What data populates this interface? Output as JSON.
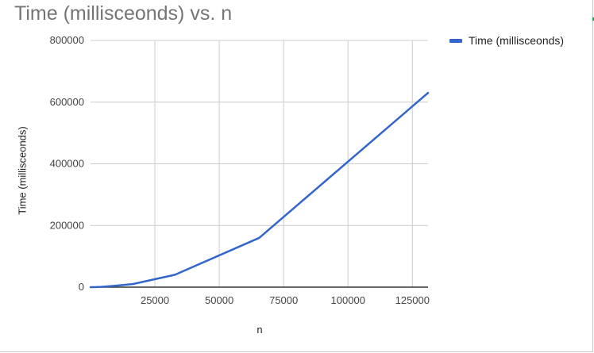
{
  "chart_data": {
    "type": "line",
    "title": "Time (millisceonds) vs. n",
    "xlabel": "n",
    "ylabel": "Time (millisceonds)",
    "xlim": [
      0,
      131072
    ],
    "ylim": [
      0,
      800000
    ],
    "xticks": [
      25000,
      50000,
      75000,
      100000,
      125000
    ],
    "yticks": [
      0,
      200000,
      400000,
      600000,
      800000
    ],
    "x_tick_labels": [
      "25000",
      "50000",
      "75000",
      "100000",
      "125000"
    ],
    "y_tick_labels": [
      "0",
      "200000",
      "400000",
      "600000",
      "800000"
    ],
    "grid": true,
    "legend_position": "top-right",
    "series": [
      {
        "name": "Time (millisceonds)",
        "color": "#3366cc",
        "x": [
          0,
          2048,
          4096,
          8192,
          16384,
          32768,
          65536,
          131072
        ],
        "y": [
          0,
          300,
          1100,
          3500,
          10000,
          40000,
          160000,
          630000
        ]
      }
    ]
  }
}
